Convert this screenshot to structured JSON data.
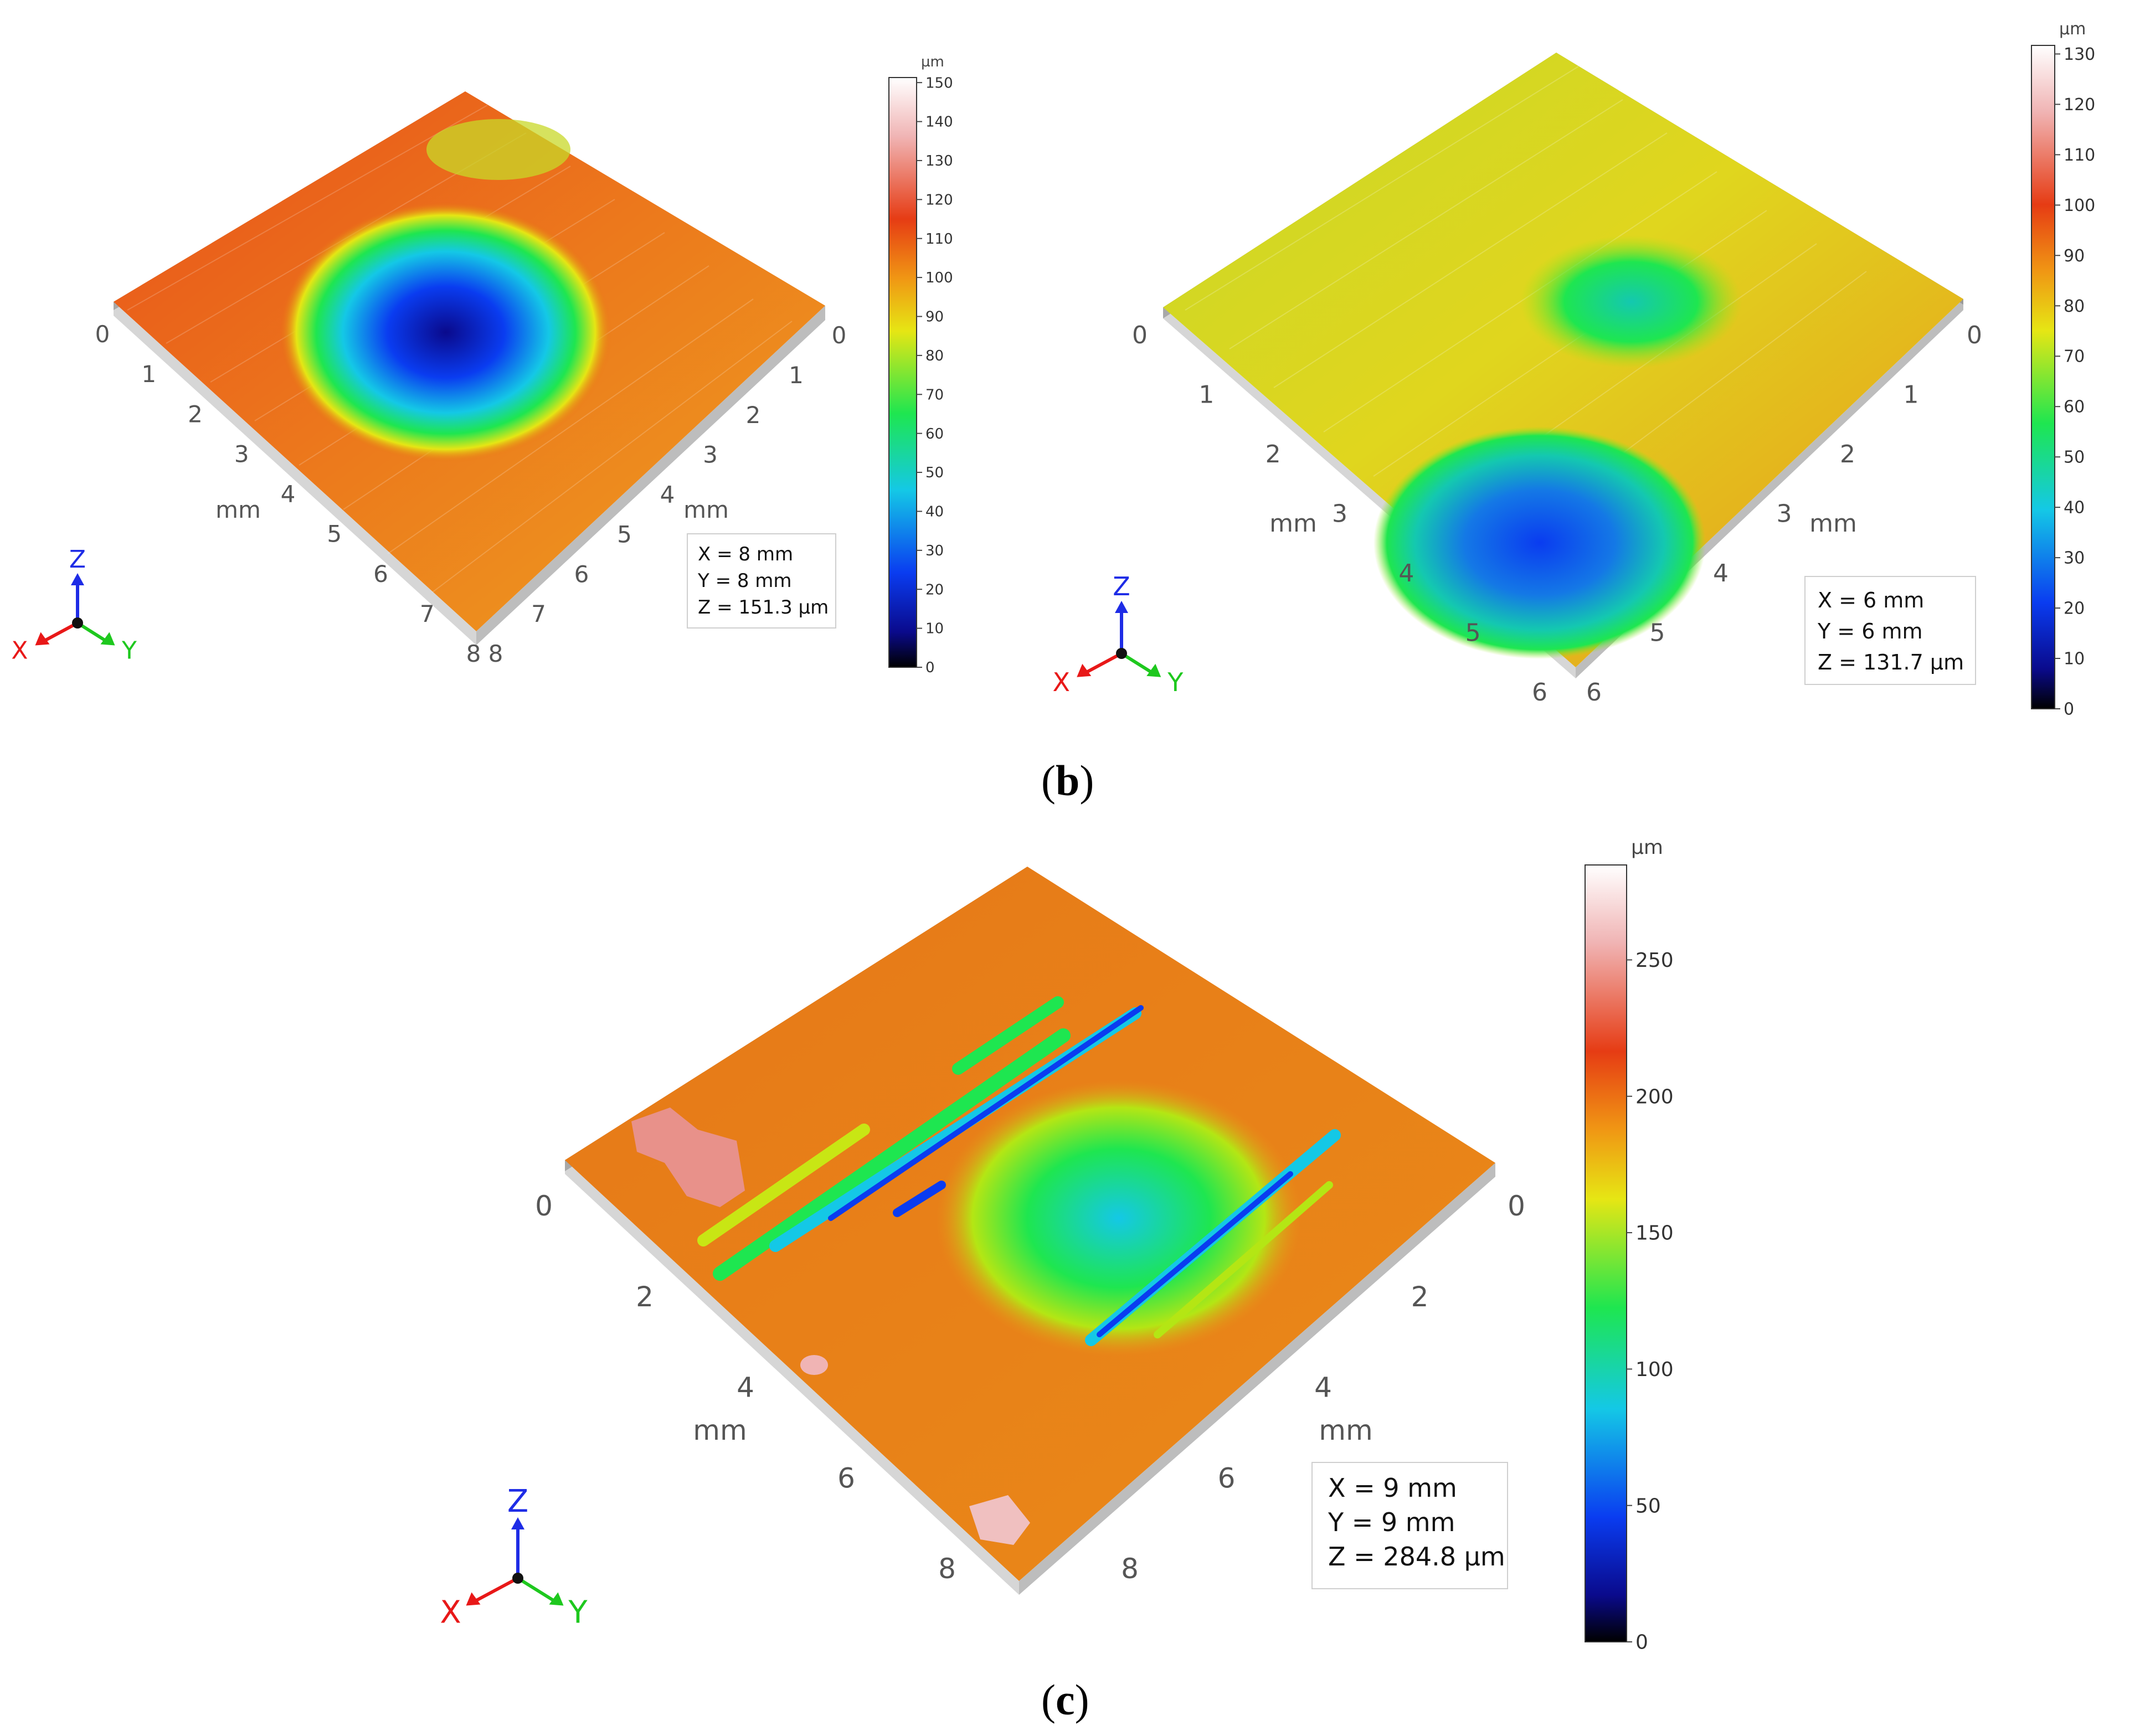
{
  "colormap": [
    "#000000",
    "#0a0a8c",
    "#0a3cf0",
    "#14c8e6",
    "#1ee650",
    "#e6e614",
    "#f09614",
    "#e63c14",
    "#f0b4b4",
    "#ffffff"
  ],
  "axis_labels": {
    "unit": "mm",
    "x": "X",
    "y": "Y",
    "z": "Z"
  },
  "panels": [
    {
      "label": "",
      "info": {
        "x": "X = 8 mm",
        "y": "Y = 8 mm",
        "z": "Z = 151.3 µm"
      },
      "scale_unit": "µm",
      "scale_max": 151.3,
      "scale_ticks": [
        "0",
        "10",
        "20",
        "30",
        "40",
        "50",
        "60",
        "70",
        "80",
        "90",
        "100",
        "110",
        "120",
        "130",
        "140",
        "150"
      ],
      "left_ticks": [
        "0",
        "1",
        "2",
        "3",
        "4",
        "5",
        "6",
        "7",
        "8"
      ],
      "right_ticks": [
        "0",
        "1",
        "2",
        "3",
        "4",
        "5",
        "6",
        "7",
        "8"
      ]
    },
    {
      "label": "b",
      "info": {
        "x": "X = 6 mm",
        "y": "Y = 6 mm",
        "z": "Z = 131.7 µm"
      },
      "scale_unit": "µm",
      "scale_max": 131.7,
      "scale_ticks": [
        "0",
        "10",
        "20",
        "30",
        "40",
        "50",
        "60",
        "70",
        "80",
        "90",
        "100",
        "110",
        "120",
        "130"
      ],
      "left_ticks": [
        "0",
        "1",
        "2",
        "3",
        "4",
        "5",
        "6"
      ],
      "right_ticks": [
        "0",
        "1",
        "2",
        "3",
        "4",
        "5",
        "6"
      ]
    },
    {
      "label": "c",
      "info": {
        "x": "X = 9 mm",
        "y": "Y = 9 mm",
        "z": "Z = 284.8 µm"
      },
      "scale_unit": "µm",
      "scale_max": 284.8,
      "scale_ticks": [
        "0",
        "50",
        "100",
        "150",
        "200",
        "250"
      ],
      "left_ticks": [
        "0",
        "2",
        "4",
        "6",
        "8"
      ],
      "right_ticks": [
        "0",
        "2",
        "4",
        "6",
        "8"
      ]
    }
  ]
}
